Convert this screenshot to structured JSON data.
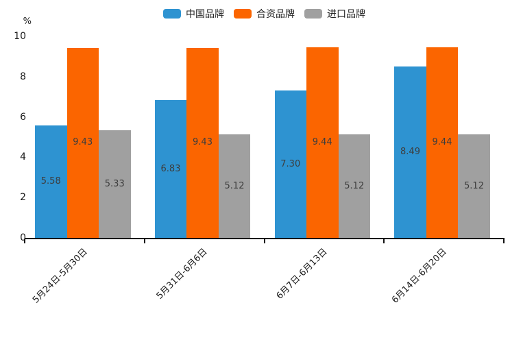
{
  "chart_data": {
    "type": "bar",
    "title": "",
    "xlabel": "",
    "ylabel": "%",
    "ylim": [
      0,
      10
    ],
    "ytick_step": 2,
    "grid": false,
    "legend_position": "top",
    "bar_value_labels": "inside-center",
    "value_decimals": 2,
    "categories": [
      "5月24日-5月30日",
      "5月31日-6月6日",
      "6月7日-6月13日",
      "6月14日-6月20日"
    ],
    "series": [
      {
        "name": "中国品牌",
        "color": "#2E93D1",
        "values": [
          5.58,
          6.83,
          7.3,
          8.49
        ]
      },
      {
        "name": "合资品牌",
        "color": "#FB6500",
        "values": [
          9.43,
          9.43,
          9.44,
          9.44
        ]
      },
      {
        "name": "进口品牌",
        "color": "#A0A0A0",
        "values": [
          5.33,
          5.12,
          5.12,
          5.12
        ]
      }
    ]
  },
  "colors": {
    "axis_line": "#111111",
    "axis_text": "#1a1a1a",
    "bar_value_text": "#3d3d3d",
    "background": "#ffffff"
  }
}
